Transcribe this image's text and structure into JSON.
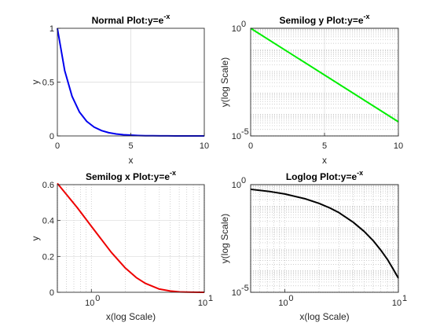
{
  "chart_data": [
    {
      "type": "line",
      "title": "Normal Plot:y=e",
      "title_exp": "-x",
      "xlabel": "x",
      "ylabel": "y",
      "xscale": "linear",
      "yscale": "linear",
      "xlim": [
        0,
        10
      ],
      "ylim": [
        0,
        1
      ],
      "xticks": [
        0,
        5,
        10
      ],
      "xtick_labels": [
        "0",
        "5",
        "10"
      ],
      "yticks": [
        0,
        0.5,
        1
      ],
      "ytick_labels": [
        "0",
        "0.5",
        "1"
      ],
      "grid": "major",
      "color": "#0000ee",
      "x": [
        0,
        0.5,
        1,
        1.5,
        2,
        2.5,
        3,
        3.5,
        4,
        4.5,
        5,
        5.5,
        6,
        6.5,
        7,
        7.5,
        8,
        8.5,
        9,
        9.5,
        10
      ],
      "y": [
        1,
        0.607,
        0.368,
        0.223,
        0.135,
        0.082,
        0.05,
        0.03,
        0.018,
        0.011,
        0.007,
        0.004,
        0.002,
        0.0015,
        0.0009,
        0.0006,
        0.0003,
        0.0002,
        0.0001,
        0.0001,
        0
      ]
    },
    {
      "type": "line",
      "title": "Semilog y Plot:y=e",
      "title_exp": "-x",
      "xlabel": "x",
      "ylabel": "y(log Scale)",
      "xscale": "linear",
      "yscale": "log",
      "xlim": [
        0,
        10
      ],
      "ylim": [
        1e-05,
        1
      ],
      "xticks": [
        0,
        5,
        10
      ],
      "xtick_labels": [
        "0",
        "5",
        "10"
      ],
      "ytick_base": [
        "10",
        "10"
      ],
      "ytick_exp": [
        "0",
        "-5"
      ],
      "grid": "major-minor",
      "color": "#00ee00",
      "x": [
        0,
        10
      ],
      "y": [
        1,
        4.54e-05
      ]
    },
    {
      "type": "line",
      "title": "Semilog x Plot:y=e",
      "title_exp": "-x",
      "xlabel": "x(log Scale)",
      "ylabel": "y",
      "xscale": "log",
      "yscale": "linear",
      "xlim": [
        0.5,
        10
      ],
      "ylim": [
        0,
        0.6
      ],
      "xtick_base": [
        "10",
        "10"
      ],
      "xtick_exp": [
        "0",
        "1"
      ],
      "yticks": [
        0,
        0.2,
        0.4,
        0.6
      ],
      "ytick_labels": [
        "0",
        "0.2",
        "0.4",
        "0.6"
      ],
      "grid": "major-minor",
      "color": "#ee0000",
      "x": [
        0.5,
        0.75,
        1,
        1.5,
        2,
        2.5,
        3,
        4,
        5,
        6,
        7,
        8,
        10
      ],
      "y": [
        0.607,
        0.472,
        0.368,
        0.223,
        0.135,
        0.082,
        0.05,
        0.018,
        0.007,
        0.002,
        0.0009,
        0.0003,
        0
      ]
    },
    {
      "type": "line",
      "title": "Loglog Plot:y=e",
      "title_exp": "-x",
      "xlabel": "x(log Scale)",
      "ylabel": "y(log Scale)",
      "xscale": "log",
      "yscale": "log",
      "xlim": [
        0.5,
        10
      ],
      "ylim": [
        1e-05,
        1
      ],
      "xtick_base": [
        "10",
        "10"
      ],
      "xtick_exp": [
        "0",
        "1"
      ],
      "ytick_base": [
        "10",
        "10"
      ],
      "ytick_exp": [
        "0",
        "-5"
      ],
      "grid": "major-minor",
      "color": "#000000",
      "x": [
        0.5,
        0.75,
        1,
        1.5,
        2,
        2.5,
        3,
        4,
        5,
        6,
        7,
        8,
        9,
        10
      ],
      "y": [
        0.607,
        0.472,
        0.368,
        0.223,
        0.135,
        0.082,
        0.05,
        0.018,
        0.0067,
        0.0025,
        0.00091,
        0.00034,
        0.00012,
        4.54e-05
      ]
    }
  ]
}
